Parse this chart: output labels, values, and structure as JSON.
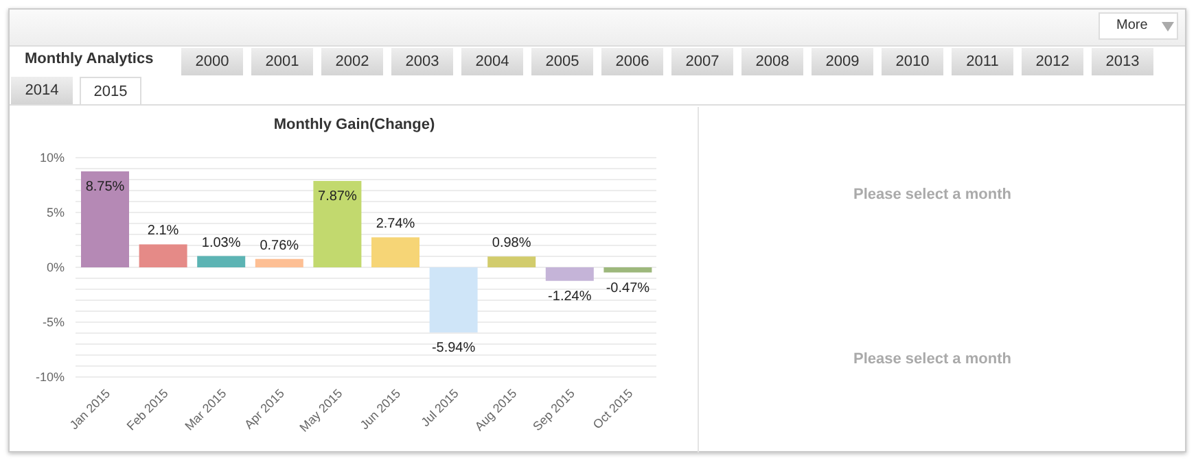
{
  "chart_data": {
    "type": "bar",
    "title": "Monthly Gain(Change)",
    "categories": [
      "Jan 2015",
      "Feb 2015",
      "Mar 2015",
      "Apr 2015",
      "May 2015",
      "Jun 2015",
      "Jul 2015",
      "Aug 2015",
      "Sep 2015",
      "Oct 2015"
    ],
    "values": [
      8.75,
      2.1,
      1.03,
      0.76,
      7.87,
      2.74,
      -5.94,
      0.98,
      -1.24,
      -0.47
    ],
    "value_labels": [
      "8.75%",
      "2.1%",
      "1.03%",
      "0.76%",
      "7.87%",
      "2.74%",
      "-5.94%",
      "0.98%",
      "-1.24%",
      "-0.47%"
    ],
    "colors": [
      "#b589b5",
      "#e58a87",
      "#5cb4b4",
      "#fdbf94",
      "#c2d96e",
      "#f6d576",
      "#cfe5f8",
      "#d2cc6c",
      "#c5b4d8",
      "#9db87c"
    ],
    "ylim": [
      -10,
      10
    ],
    "yticks": [
      {
        "value": -10,
        "label": "-10%"
      },
      {
        "value": -9,
        "label": null
      },
      {
        "value": -8,
        "label": null
      },
      {
        "value": -7,
        "label": null
      },
      {
        "value": -6,
        "label": null
      },
      {
        "value": -5,
        "label": "-5%"
      },
      {
        "value": -4,
        "label": null
      },
      {
        "value": -3,
        "label": null
      },
      {
        "value": -2,
        "label": null
      },
      {
        "value": -1,
        "label": null
      },
      {
        "value": 0,
        "label": "0%"
      },
      {
        "value": 1,
        "label": null
      },
      {
        "value": 2,
        "label": null
      },
      {
        "value": 3,
        "label": null
      },
      {
        "value": 4,
        "label": null
      },
      {
        "value": 5,
        "label": "5%"
      },
      {
        "value": 6,
        "label": null
      },
      {
        "value": 7,
        "label": null
      },
      {
        "value": 8,
        "label": null
      },
      {
        "value": 9,
        "label": null
      },
      {
        "value": 10,
        "label": "10%"
      }
    ],
    "grid": "y",
    "annotations": [
      "More",
      "Monthly Analytics",
      "2000",
      "2001",
      "2002",
      "2003",
      "2004",
      "2005",
      "2006",
      "2007",
      "2008",
      "2009",
      "2010",
      "2011",
      "2012",
      "2013",
      "2014",
      "2015",
      "Please select a month",
      "Please select a month"
    ]
  }
}
